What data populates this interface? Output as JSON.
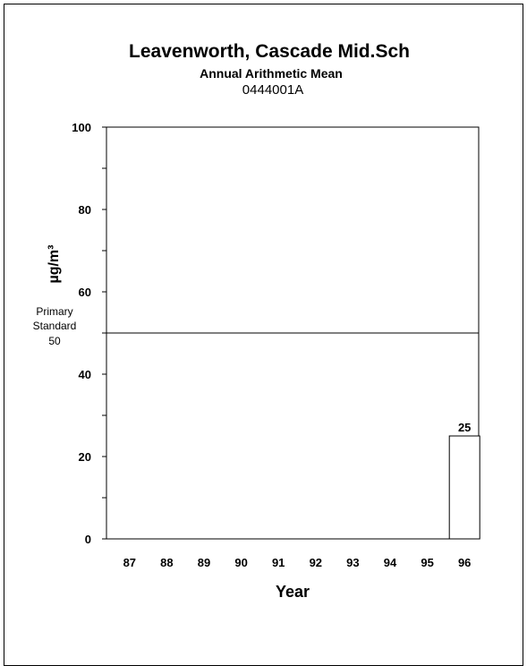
{
  "chart_data": {
    "type": "bar",
    "title": "Leavenworth, Cascade Mid.Sch",
    "subtitle": "Annual Arithmetic Mean",
    "site_code": "0444001A",
    "xlabel": "Year",
    "ylabel": "µg/m³",
    "ylim": [
      0,
      100
    ],
    "yticks": [
      0,
      20,
      40,
      60,
      80,
      100
    ],
    "categories": [
      "87",
      "88",
      "89",
      "90",
      "91",
      "92",
      "93",
      "94",
      "95",
      "96"
    ],
    "values": [
      null,
      null,
      null,
      null,
      null,
      null,
      null,
      null,
      null,
      25
    ],
    "data_labels": [
      "",
      "",
      "",
      "",
      "",
      "",
      "",
      "",
      "",
      "25"
    ],
    "reference_line": {
      "value": 50,
      "label_line1": "Primary",
      "label_line2": "Standard",
      "label_line3": "50"
    },
    "grid": false,
    "legend": "none"
  }
}
